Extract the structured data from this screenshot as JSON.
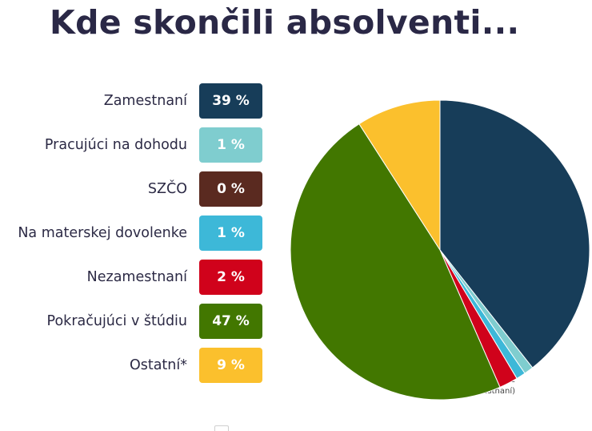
{
  "title": "Kde skončili absolventi...",
  "footnote": "(*pracujúci v zahraničí, dobrovoľne nezamestnaní)",
  "chart_data": {
    "type": "pie",
    "title": "Kde skončili absolventi...",
    "start": "12 o'clock, clockwise",
    "slices": [
      {
        "label": "Zamestnaní",
        "value": 39,
        "display": "39 %",
        "color": "#173d59"
      },
      {
        "label": "Pracujúci na dohodu",
        "value": 1,
        "display": "1 %",
        "color": "#7fcdcf"
      },
      {
        "label": "SZČO",
        "value": 0,
        "display": "0 %",
        "color": "#5a2a20"
      },
      {
        "label": "Na materskej dovolenke",
        "value": 1,
        "display": "1 %",
        "color": "#3db8d8"
      },
      {
        "label": "Nezamestnaní",
        "value": 2,
        "display": "2 %",
        "color": "#d0021b"
      },
      {
        "label": "Pokračujúci v štúdiu",
        "value": 47,
        "display": "47 %",
        "color": "#427700"
      },
      {
        "label": "Ostatní*",
        "value": 9,
        "display": "9 %",
        "color": "#fbc02d"
      }
    ]
  }
}
